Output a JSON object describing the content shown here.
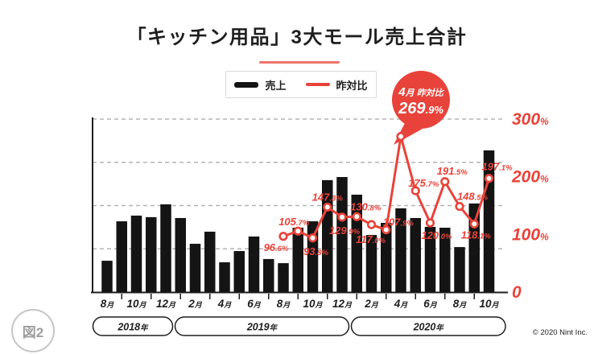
{
  "page": {
    "figure_label": "図2",
    "copyright": "© 2020 Nint Inc."
  },
  "header": {
    "title": "「キッチン用品」3大モール売上合計"
  },
  "legend": {
    "items": [
      {
        "label": "売上",
        "type": "bar"
      },
      {
        "label": "昨対比",
        "type": "line"
      }
    ]
  },
  "callout": {
    "month": "4月",
    "label": "昨対比",
    "value": "269.9%"
  },
  "colors": {
    "accent_red": "#E8433A",
    "bar_black": "#141414",
    "grid_gray": "#b3b3b3",
    "axis_black": "#1e1e1e",
    "badge_gray": "#9e9e9e"
  },
  "right_axis": {
    "tick_labels": [
      "300%",
      "200%",
      "100%",
      "0"
    ],
    "values": [
      300,
      200,
      100,
      0
    ]
  },
  "chart_data": {
    "type": "bar+line",
    "title": "「キッチン用品」3大モール売上合計",
    "categories": [
      "2018-08",
      "2018-09",
      "2018-10",
      "2018-11",
      "2018-12",
      "2019-01",
      "2019-02",
      "2019-03",
      "2019-04",
      "2019-05",
      "2019-06",
      "2019-07",
      "2019-08",
      "2019-09",
      "2019-10",
      "2019-11",
      "2019-12",
      "2020-01",
      "2020-02",
      "2020-03",
      "2020-04",
      "2020-05",
      "2020-06",
      "2020-07",
      "2020-08",
      "2020-09",
      "2020-10"
    ],
    "x_tick_labels": [
      "8月",
      "10月",
      "12月",
      "2月",
      "4月",
      "6月",
      "8月",
      "10月",
      "12月",
      "2月",
      "4月",
      "6月",
      "8月",
      "10月"
    ],
    "year_bands": [
      {
        "label": "2018年",
        "from": "2018-08",
        "to": "2018-12"
      },
      {
        "label": "2019年",
        "from": "2019-01",
        "to": "2019-12"
      },
      {
        "label": "2020年",
        "from": "2020-01",
        "to": "2020-10"
      }
    ],
    "series": [
      {
        "name": "売上",
        "type": "bar",
        "axis": "left (unlabeled)",
        "unit": "sales index (estimated, % of plot height)",
        "values": [
          18.1,
          40.9,
          44.2,
          43.3,
          50.7,
          42.8,
          27.9,
          34.9,
          17.2,
          23.7,
          32.1,
          19.1,
          16.7,
          37.2,
          40.9,
          64.7,
          66.5,
          56.3,
          33.0,
          40.0,
          48.4,
          42.8,
          37.7,
          37.2,
          26.0,
          51.2,
          81.9
        ]
      },
      {
        "name": "昨対比",
        "type": "line",
        "axis": "right",
        "unit": "%",
        "start_category": "2019-08",
        "values": [
          96.6,
          105.7,
          93.8,
          147.3,
          129.9,
          130.8,
          117.0,
          107.9,
          269.9,
          175.7,
          120.0,
          191.5,
          148.5,
          118.1,
          197.1
        ]
      }
    ],
    "point_labels": [
      "96.6%",
      "105.7%",
      "93.8%",
      "147.3%",
      "129.9%",
      "130.8%",
      "117.0%",
      "107.9%",
      null,
      "175.7%",
      "120.0%",
      "191.5%",
      "148.5%",
      "118.1%",
      "197.1%"
    ],
    "right_ylim": [
      0,
      300
    ],
    "grid": "dashed horizontal",
    "legend_position": "top center",
    "annotation": {
      "target": "2020-04",
      "text": "4月 昨対比 269.9%"
    }
  }
}
